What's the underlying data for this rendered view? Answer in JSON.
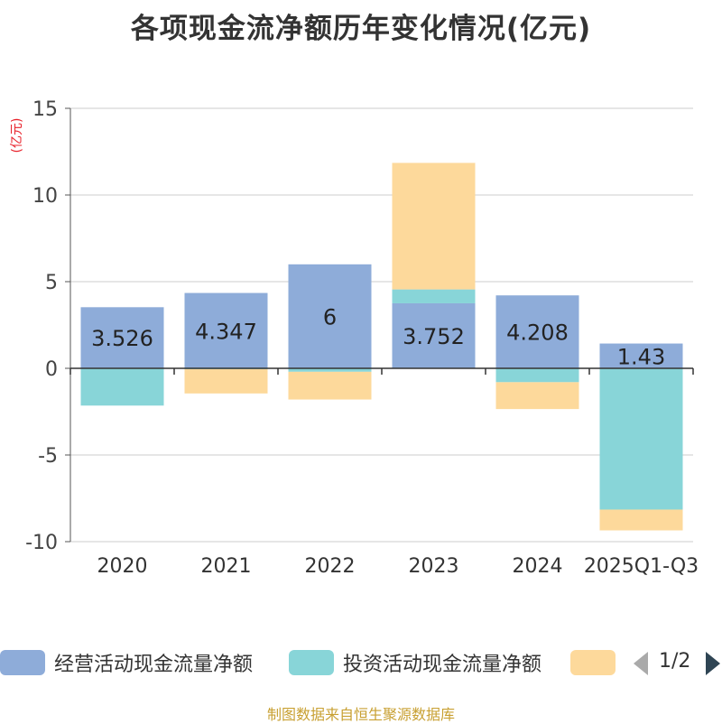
{
  "chart_data": {
    "type": "bar",
    "stacked": true,
    "title": "各项现金流净额历年变化情况(亿元)",
    "ylabel": "(亿元)",
    "ylim": [
      -10,
      15
    ],
    "yticks": [
      15,
      10,
      5,
      0,
      -5,
      -10
    ],
    "categories": [
      "2020",
      "2021",
      "2022",
      "2023",
      "2024",
      "2025Q1-Q3"
    ],
    "series": [
      {
        "name": "经营活动现金流量净额",
        "color": "#8eacd9",
        "values": [
          3.526,
          4.347,
          6,
          3.752,
          4.208,
          1.43
        ],
        "labels": [
          "3.526",
          "4.347",
          "6",
          "3.752",
          "4.208",
          "1.43"
        ]
      },
      {
        "name": "投资活动现金流量净额",
        "color": "#88d5d8",
        "values": [
          -2.15,
          -0.05,
          -0.2,
          0.8,
          -0.8,
          -8.15
        ]
      },
      {
        "name": "",
        "color": "#fdd99b",
        "values": [
          0,
          -1.4,
          -1.6,
          7.3,
          -1.55,
          -1.2
        ]
      }
    ]
  },
  "legend": {
    "items": [
      "经营活动现金流量净额",
      "投资活动现金流量净额",
      ""
    ],
    "page": "1/2"
  },
  "source": "制图数据来自恒生聚源数据库"
}
